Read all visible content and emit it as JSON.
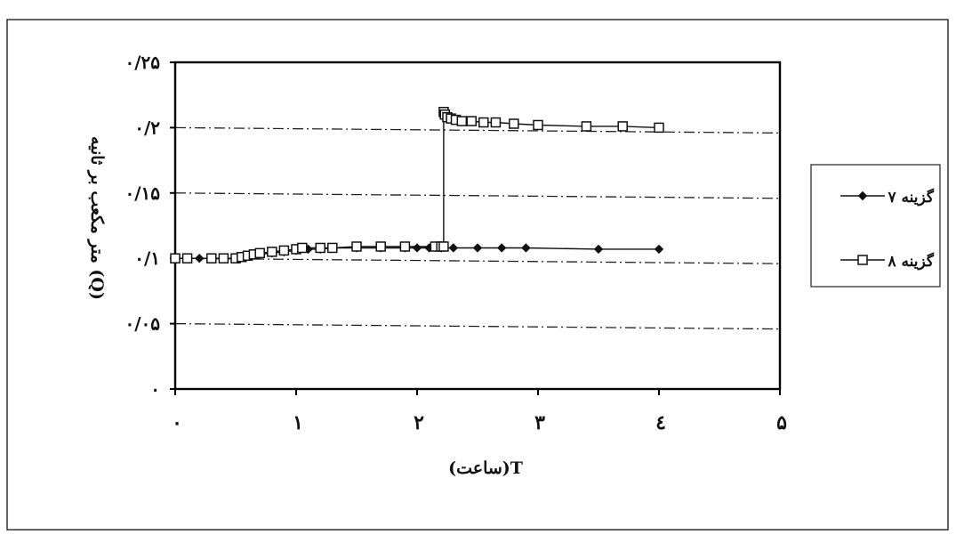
{
  "chart_data": {
    "type": "line",
    "xlabel": "(ساعت)T",
    "ylabel": "متر مکعب بر ثانیه (Q)",
    "xlim": [
      0,
      5
    ],
    "ylim": [
      0,
      0.25
    ],
    "x_ticks": [
      0,
      1,
      2,
      3,
      4,
      5
    ],
    "x_tick_labels": [
      "۰",
      "۱",
      "۲",
      "۳",
      "٤",
      "۵"
    ],
    "y_ticks": [
      0,
      0.05,
      0.1,
      0.15,
      0.2,
      0.25
    ],
    "y_tick_labels": [
      "۰",
      "۰/۰۵",
      "۰/۱",
      "۰/۱۵",
      "۰/۲",
      "۰/۲۵"
    ],
    "grid": "horizontal dash-dot",
    "legend_position": "right",
    "series": [
      {
        "name": "گزینه ۷",
        "marker": "diamond",
        "color": "#111111",
        "x": [
          0.0,
          0.1,
          0.2,
          0.3,
          0.4,
          0.5,
          0.55,
          0.6,
          0.7,
          0.8,
          0.9,
          1.0,
          1.1,
          1.2,
          1.3,
          1.5,
          1.7,
          1.9,
          2.0,
          2.1,
          2.2,
          2.3,
          2.5,
          2.7,
          2.9,
          3.5,
          4.0
        ],
        "y": [
          0.1,
          0.1,
          0.1,
          0.1,
          0.1,
          0.1,
          0.101,
          0.102,
          0.103,
          0.104,
          0.105,
          0.106,
          0.107,
          0.107,
          0.108,
          0.108,
          0.108,
          0.108,
          0.108,
          0.108,
          0.108,
          0.108,
          0.108,
          0.108,
          0.108,
          0.107,
          0.107
        ]
      },
      {
        "name": "گزینه ۸",
        "marker": "square",
        "color": "#111111",
        "x": [
          0.0,
          0.1,
          0.3,
          0.4,
          0.5,
          0.55,
          0.6,
          0.65,
          0.7,
          0.8,
          0.9,
          1.0,
          1.05,
          1.2,
          1.3,
          1.5,
          1.7,
          1.9,
          2.15,
          2.2,
          2.22,
          2.22,
          2.23,
          2.25,
          2.28,
          2.32,
          2.37,
          2.45,
          2.55,
          2.65,
          2.8,
          3.0,
          3.4,
          3.7,
          4.0
        ],
        "y": [
          0.1,
          0.1,
          0.1,
          0.1,
          0.1,
          0.101,
          0.102,
          0.103,
          0.104,
          0.105,
          0.106,
          0.107,
          0.108,
          0.108,
          0.108,
          0.109,
          0.109,
          0.109,
          0.109,
          0.109,
          0.109,
          0.212,
          0.21,
          0.208,
          0.207,
          0.206,
          0.205,
          0.205,
          0.204,
          0.204,
          0.203,
          0.202,
          0.201,
          0.201,
          0.2
        ]
      }
    ]
  }
}
